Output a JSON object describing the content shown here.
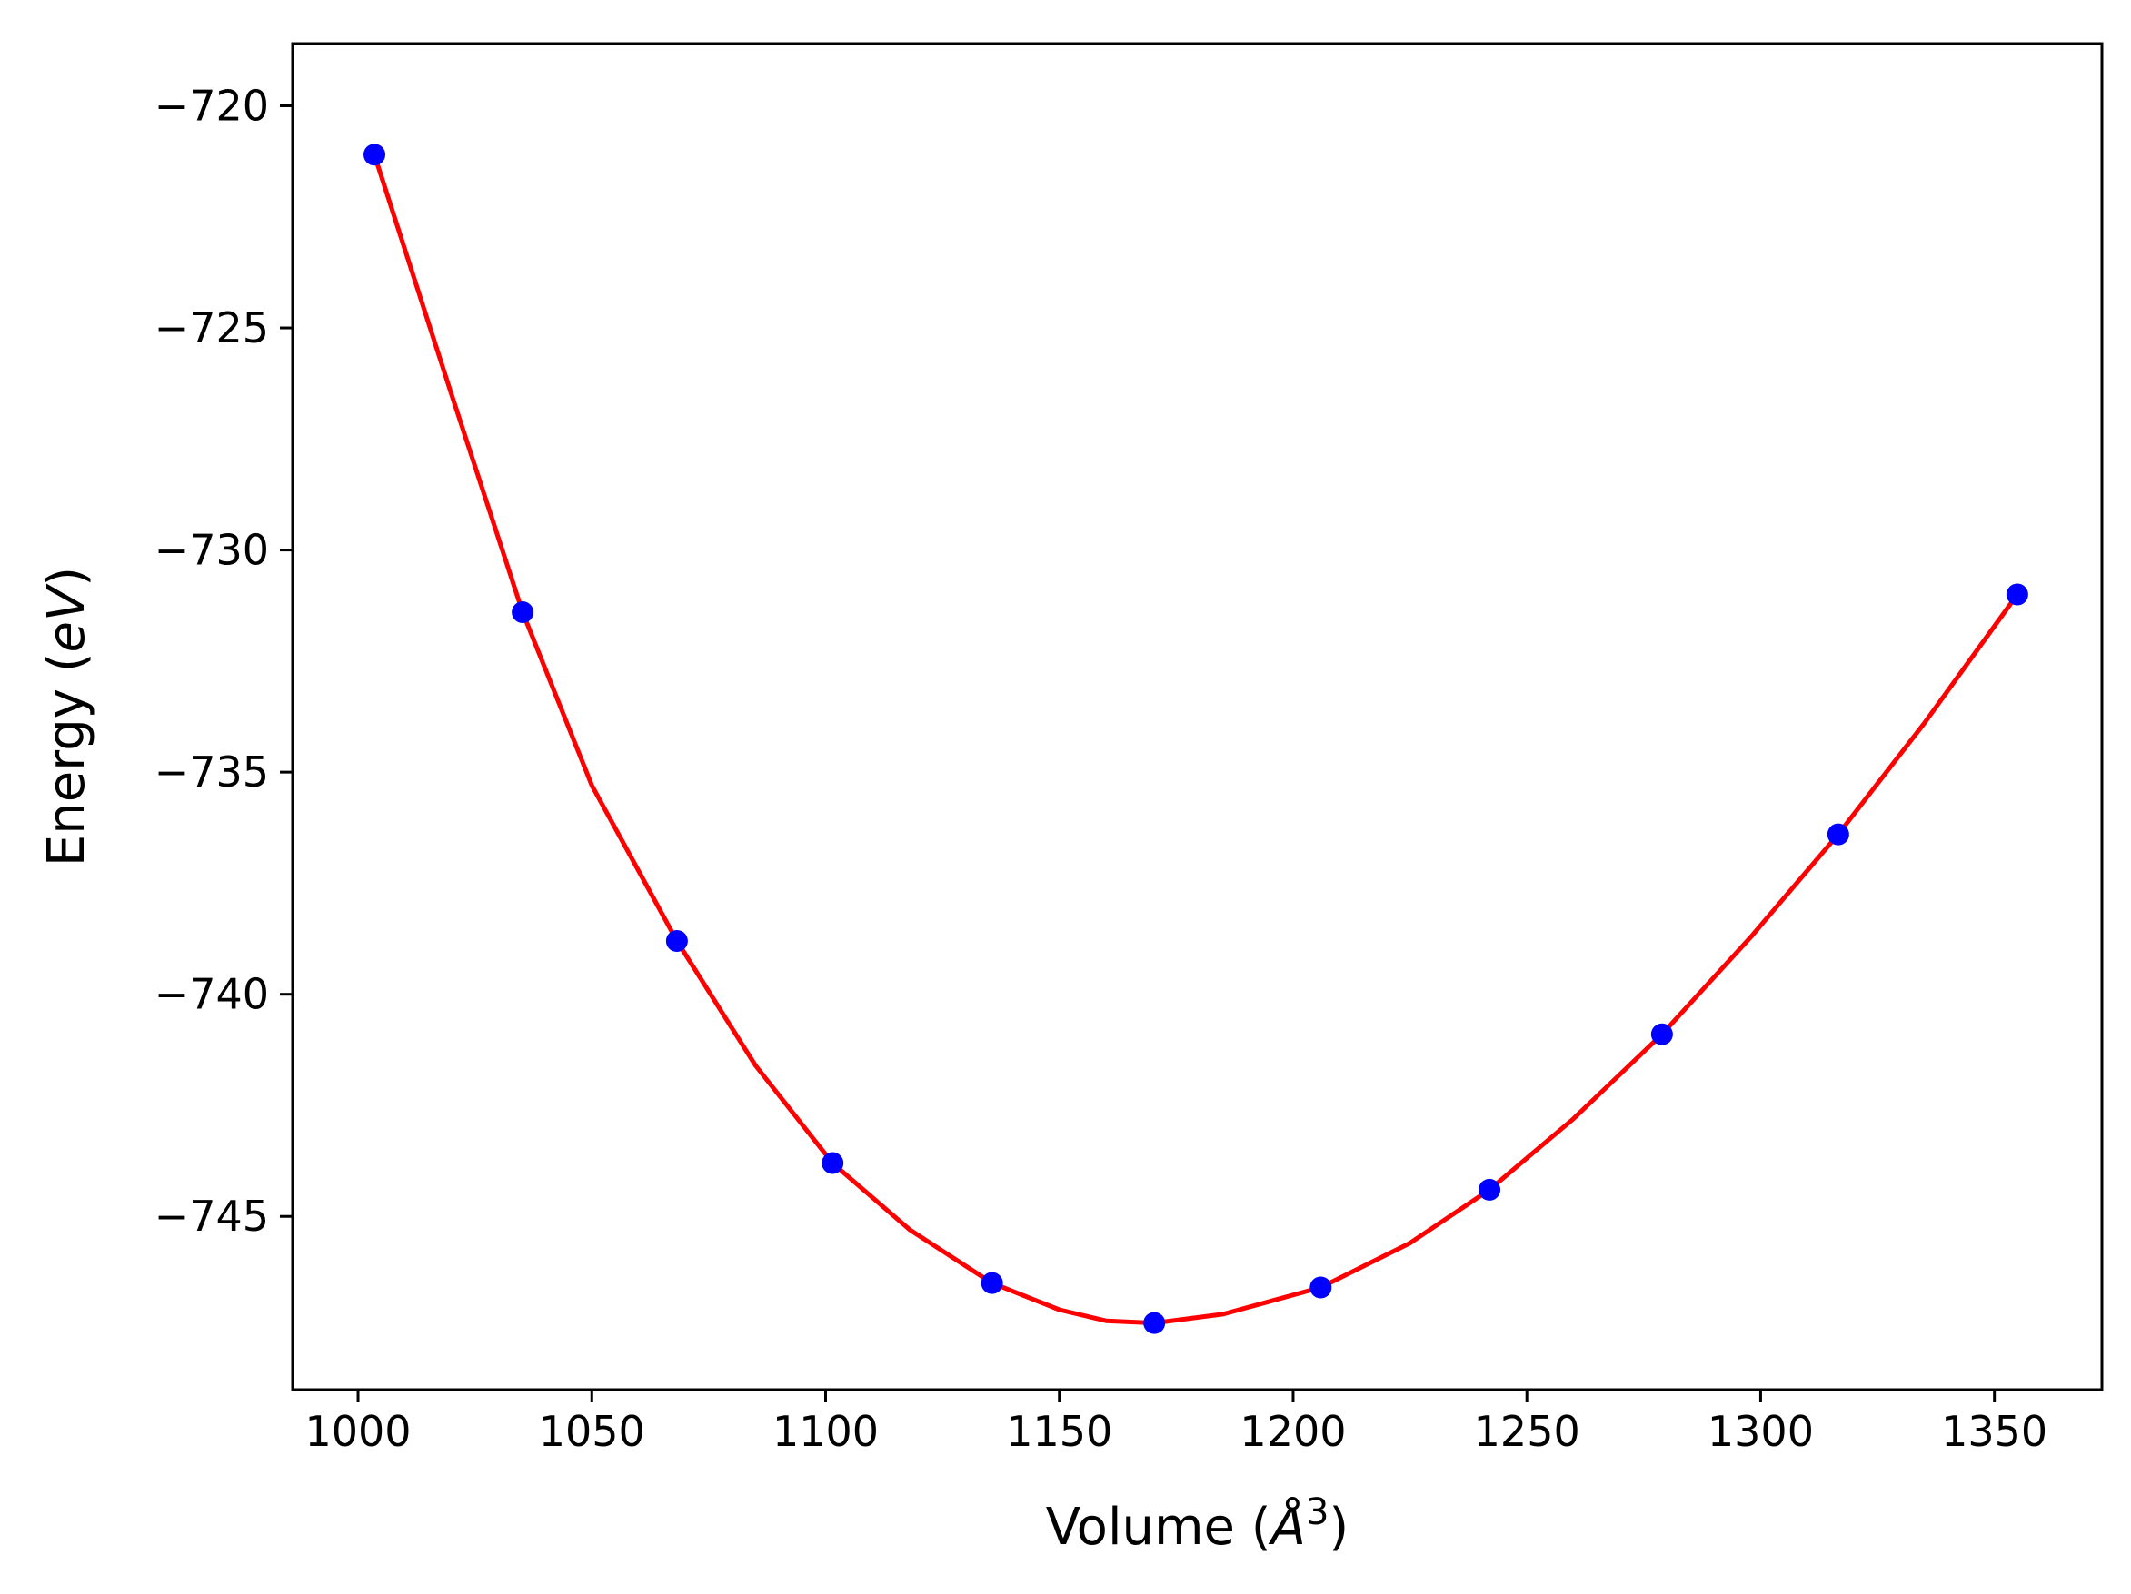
{
  "chart_data": {
    "type": "scatter",
    "title": "",
    "xlabel": {
      "prefix": "Volume (",
      "unit": "Å",
      "sup": "3",
      "suffix": ")"
    },
    "ylabel": {
      "prefix": "Energy (",
      "unit": "eV",
      "suffix": ")"
    },
    "xlim": [
      986,
      1373
    ],
    "ylim": [
      -748.9,
      -718.6
    ],
    "xticks": [
      1000,
      1050,
      1100,
      1150,
      1200,
      1250,
      1300,
      1350
    ],
    "yticks": [
      -720,
      -725,
      -730,
      -735,
      -740,
      -745
    ],
    "xtick_labels": [
      "1000",
      "1050",
      "1100",
      "1150",
      "1200",
      "1250",
      "1300",
      "1350"
    ],
    "ytick_labels": [
      "−720",
      "−725",
      "−730",
      "−735",
      "−740",
      "−745"
    ],
    "grid": false,
    "series": [
      {
        "kind": "points",
        "color": "#0000ff",
        "x": [
          1003.5,
          1035.2,
          1068.2,
          1101.5,
          1135.6,
          1170.3,
          1205.9,
          1242.0,
          1278.9,
          1316.6,
          1354.9
        ],
        "y": [
          -721.1,
          -731.4,
          -738.8,
          -743.8,
          -746.5,
          -747.4,
          -746.6,
          -744.4,
          -740.9,
          -736.4,
          -731.0
        ]
      },
      {
        "kind": "fit",
        "color": "#ff0000",
        "x": [
          1003.5,
          1020,
          1035.2,
          1050,
          1068.2,
          1085,
          1101.5,
          1118,
          1135.6,
          1150,
          1160,
          1170.3,
          1185,
          1205.9,
          1225,
          1242.0,
          1260,
          1278.9,
          1298,
          1316.6,
          1335,
          1354.9
        ],
        "y": [
          -721.1,
          -726.5,
          -731.4,
          -735.3,
          -738.8,
          -741.6,
          -743.8,
          -745.3,
          -746.5,
          -747.1,
          -747.35,
          -747.4,
          -747.2,
          -746.6,
          -745.6,
          -744.4,
          -742.8,
          -740.9,
          -738.7,
          -736.4,
          -733.9,
          -731.0
        ]
      }
    ]
  }
}
